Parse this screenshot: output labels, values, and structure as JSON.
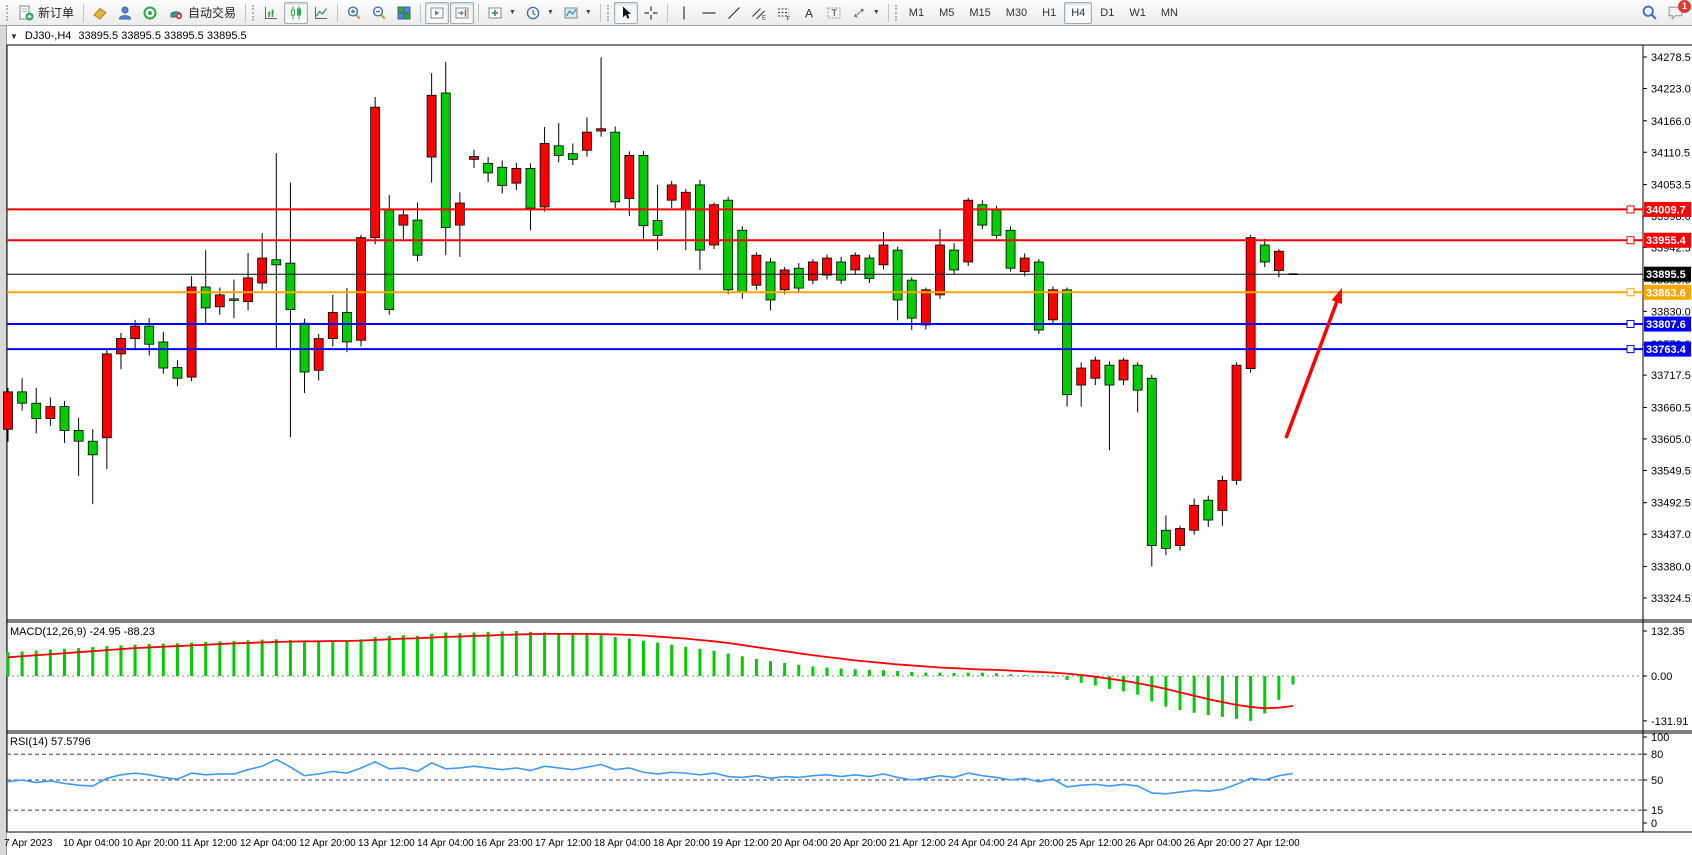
{
  "toolbar": {
    "new_order_label": "新订单",
    "auto_trading_label": "自动交易",
    "timeframes": [
      "M1",
      "M5",
      "M15",
      "M30",
      "H1",
      "H4",
      "D1",
      "W1",
      "MN"
    ],
    "active_timeframe": "H4",
    "notification_count": "1"
  },
  "chart": {
    "symbol_period": "DJ30-,H4",
    "ohlc_text": "33895.5 33895.5 33895.5 33895.5",
    "macd_label": "MACD(12,26,9)",
    "macd_values": "-24.95 -88.23",
    "rsi_label": "RSI(14)",
    "rsi_value": "57.5796"
  },
  "chart_data": {
    "type": "candlestick",
    "symbol": "DJ30-",
    "timeframe": "H4",
    "price_axis_ticks": [
      "34278.5",
      "34223.0",
      "34166.0",
      "34110.5",
      "34053.5",
      "33998.0",
      "33942.5",
      "33886.5",
      "33830.0",
      "33772.0",
      "33717.5",
      "33660.5",
      "33605.0",
      "33549.5",
      "33492.5",
      "33437.0",
      "33380.0",
      "33324.5"
    ],
    "price_axis_range": [
      33324.5,
      34278.5
    ],
    "time_labels": [
      "7 Apr 2023",
      "10 Apr 04:00",
      "10 Apr 20:00",
      "11 Apr 12:00",
      "12 Apr 04:00",
      "12 Apr 20:00",
      "13 Apr 12:00",
      "14 Apr 04:00",
      "16 Apr 23:00",
      "17 Apr 12:00",
      "18 Apr 04:00",
      "18 Apr 20:00",
      "19 Apr 12:00",
      "20 Apr 04:00",
      "20 Apr 20:00",
      "21 Apr 12:00",
      "24 Apr 04:00",
      "24 Apr 20:00",
      "25 Apr 12:00",
      "26 Apr 04:00",
      "26 Apr 20:00",
      "27 Apr 12:00"
    ],
    "candles": [
      [
        33622,
        33695,
        33600,
        33688
      ],
      [
        33688,
        33712,
        33655,
        33668
      ],
      [
        33668,
        33695,
        33615,
        33641
      ],
      [
        33641,
        33678,
        33628,
        33662
      ],
      [
        33662,
        33672,
        33598,
        33620
      ],
      [
        33620,
        33642,
        33540,
        33601
      ],
      [
        33601,
        33622,
        33490,
        33577
      ],
      [
        33607,
        33762,
        33552,
        33755
      ],
      [
        33755,
        33792,
        33728,
        33782
      ],
      [
        33782,
        33815,
        33763,
        33804
      ],
      [
        33804,
        33818,
        33752,
        33772
      ],
      [
        33776,
        33794,
        33720,
        33730
      ],
      [
        33731,
        33744,
        33698,
        33712
      ],
      [
        33714,
        33892,
        33707,
        33873
      ],
      [
        33873,
        33938,
        33809,
        33836
      ],
      [
        33838,
        33872,
        33824,
        33859
      ],
      [
        33852,
        33886,
        33818,
        33850
      ],
      [
        33847,
        33933,
        33832,
        33889
      ],
      [
        33880,
        33968,
        33868,
        33924
      ],
      [
        33921,
        34109,
        33762,
        33912
      ],
      [
        33915,
        34057,
        33608,
        33833
      ],
      [
        33809,
        33817,
        33686,
        33723
      ],
      [
        33726,
        33790,
        33708,
        33782
      ],
      [
        33782,
        33859,
        33768,
        33828
      ],
      [
        33828,
        33871,
        33758,
        33776
      ],
      [
        33779,
        33965,
        33768,
        33960
      ],
      [
        33960,
        34208,
        33948,
        34190
      ],
      [
        34009,
        34035,
        33824,
        33833
      ],
      [
        33982,
        34012,
        33956,
        34000
      ],
      [
        33991,
        34022,
        33918,
        33929
      ],
      [
        34102,
        34250,
        34057,
        34211
      ],
      [
        34215,
        34270,
        33929,
        33978
      ],
      [
        33982,
        34040,
        33926,
        34021
      ],
      [
        34098,
        34115,
        34083,
        34103
      ],
      [
        34091,
        34102,
        34058,
        34074
      ],
      [
        34084,
        34096,
        34038,
        34052
      ],
      [
        34056,
        34092,
        34044,
        34082
      ],
      [
        34082,
        34091,
        33973,
        34012
      ],
      [
        34014,
        34155,
        34006,
        34126
      ],
      [
        34122,
        34162,
        34093,
        34105
      ],
      [
        34108,
        34126,
        34088,
        34098
      ],
      [
        34114,
        34172,
        34103,
        34146
      ],
      [
        34148,
        34278,
        34138,
        34152
      ],
      [
        34146,
        34156,
        34012,
        34023
      ],
      [
        34029,
        34112,
        33998,
        34105
      ],
      [
        34105,
        34113,
        33958,
        33981
      ],
      [
        33990,
        34053,
        33938,
        33964
      ],
      [
        34026,
        34060,
        34012,
        34053
      ],
      [
        34009,
        34046,
        33938,
        34040
      ],
      [
        34053,
        34062,
        33903,
        33938
      ],
      [
        33947,
        34022,
        33940,
        34018
      ],
      [
        34026,
        34032,
        33860,
        33868
      ],
      [
        33973,
        33980,
        33852,
        33864
      ],
      [
        33876,
        33934,
        33868,
        33929
      ],
      [
        33917,
        33924,
        33832,
        33850
      ],
      [
        33868,
        33908,
        33860,
        33903
      ],
      [
        33906,
        33915,
        33862,
        33871
      ],
      [
        33885,
        33922,
        33878,
        33917
      ],
      [
        33894,
        33930,
        33886,
        33924
      ],
      [
        33917,
        33926,
        33878,
        33885
      ],
      [
        33903,
        33934,
        33895,
        33929
      ],
      [
        33924,
        33930,
        33880,
        33888
      ],
      [
        33912,
        33970,
        33904,
        33947
      ],
      [
        33938,
        33944,
        33814,
        33850
      ],
      [
        33885,
        33890,
        33797,
        33818
      ],
      [
        33806,
        33872,
        33798,
        33868
      ],
      [
        33859,
        33975,
        33852,
        33947
      ],
      [
        33938,
        33950,
        33896,
        33903
      ],
      [
        33917,
        34030,
        33910,
        34026
      ],
      [
        34018,
        34026,
        33975,
        33982
      ],
      [
        34009,
        34016,
        33958,
        33964
      ],
      [
        33973,
        33980,
        33900,
        33906
      ],
      [
        33900,
        33932,
        33892,
        33924
      ],
      [
        33917,
        33922,
        33790,
        33797
      ],
      [
        33815,
        33874,
        33808,
        33868
      ],
      [
        33868,
        33872,
        33662,
        33683
      ],
      [
        33700,
        33740,
        33662,
        33730
      ],
      [
        33712,
        33750,
        33700,
        33744
      ],
      [
        33735,
        33742,
        33585,
        33700
      ],
      [
        33709,
        33748,
        33700,
        33744
      ],
      [
        33735,
        33740,
        33652,
        33691
      ],
      [
        33712,
        33718,
        33380,
        33417
      ],
      [
        33444,
        33470,
        33400,
        33412
      ],
      [
        33417,
        33452,
        33408,
        33447
      ],
      [
        33444,
        33500,
        33436,
        33488
      ],
      [
        33497,
        33505,
        33450,
        33462
      ],
      [
        33479,
        33540,
        33452,
        33532
      ],
      [
        33532,
        33740,
        33524,
        33735
      ],
      [
        33729,
        33965,
        33722,
        33960
      ],
      [
        33947,
        33958,
        33908,
        33917
      ],
      [
        33902,
        33940,
        33890,
        33936
      ],
      [
        33895.5,
        33895.5,
        33895.5,
        33895.5
      ]
    ],
    "hlines": [
      {
        "price": 34009.7,
        "label": "34009.7",
        "color": "#ff0000"
      },
      {
        "price": 33955.4,
        "label": "33955.4",
        "color": "#ff0000"
      },
      {
        "price": 33895.5,
        "label": "33895.5",
        "color": "#000000",
        "kind": "current"
      },
      {
        "price": 33863.6,
        "label": "33863.6",
        "color": "#ffa500"
      },
      {
        "price": 33807.6,
        "label": "33807.6",
        "color": "#0000ff"
      },
      {
        "price": 33763.4,
        "label": "33763.4",
        "color": "#0000ff"
      }
    ],
    "macd": {
      "axis_ticks": [
        {
          "label": "132.35",
          "value": 132.35
        },
        {
          "label": "0.00",
          "value": 0
        },
        {
          "label": "-131.91",
          "value": -131.91
        }
      ],
      "histogram": [
        70,
        72,
        75,
        78,
        80,
        82,
        85,
        88,
        90,
        92,
        94,
        95,
        96,
        98,
        100,
        102,
        103,
        105,
        107,
        108,
        106,
        104,
        102,
        103,
        104,
        108,
        115,
        118,
        120,
        118,
        124,
        128,
        126,
        128,
        130,
        131,
        132.35,
        130,
        128,
        126,
        124,
        122,
        120,
        115,
        110,
        104,
        98,
        92,
        86,
        80,
        74,
        66,
        58,
        50,
        44,
        38,
        33,
        28,
        25,
        22,
        20,
        18,
        17,
        15,
        12,
        10,
        10,
        9,
        10,
        10,
        8,
        5,
        3,
        0,
        -3,
        -12,
        -20,
        -28,
        -38,
        -45,
        -55,
        -75,
        -90,
        -100,
        -108,
        -115,
        -120,
        -126,
        -131.91,
        -110,
        -70,
        -24.95
      ],
      "signal": [
        55,
        58,
        61,
        64,
        67,
        70,
        73,
        76,
        79,
        82,
        84,
        86,
        88,
        90,
        92,
        94,
        96,
        97,
        99,
        100,
        101,
        102,
        102,
        103,
        103,
        104,
        106,
        108,
        110,
        111,
        113,
        115,
        116,
        118,
        119,
        121,
        122,
        123,
        124,
        124,
        124,
        124,
        123,
        122,
        121,
        119,
        116,
        113,
        110,
        106,
        102,
        97,
        91,
        85,
        79,
        73,
        67,
        61,
        56,
        51,
        46,
        42,
        38,
        34,
        31,
        28,
        25,
        23,
        21,
        19,
        18,
        16,
        14,
        12,
        10,
        7,
        3,
        -2,
        -8,
        -14,
        -21,
        -29,
        -38,
        -48,
        -58,
        -68,
        -77,
        -85,
        -91,
        -95,
        -93,
        -88.23
      ]
    },
    "rsi": {
      "axis_ticks": [
        {
          "label": "100",
          "value": 100
        },
        {
          "label": "80",
          "value": 80
        },
        {
          "label": "50",
          "value": 50
        },
        {
          "label": "15",
          "value": 15
        },
        {
          "label": "0",
          "value": 0
        }
      ],
      "levels": [
        80,
        50,
        15
      ],
      "values": [
        48,
        50,
        47,
        49,
        46,
        44,
        43,
        52,
        56,
        58,
        56,
        53,
        51,
        58,
        56,
        57,
        57,
        62,
        66,
        74,
        65,
        55,
        57,
        60,
        58,
        64,
        71,
        63,
        64,
        60,
        70,
        63,
        64,
        66,
        64,
        62,
        64,
        61,
        66,
        64,
        62,
        65,
        68,
        62,
        64,
        59,
        57,
        59,
        58,
        56,
        58,
        54,
        53,
        55,
        52,
        54,
        53,
        55,
        56,
        54,
        56,
        54,
        57,
        53,
        50,
        52,
        55,
        53,
        58,
        55,
        53,
        50,
        52,
        48,
        51,
        42,
        44,
        45,
        43,
        45,
        43,
        35,
        34,
        36,
        38,
        37,
        39,
        45,
        52,
        50,
        55,
        57.58
      ]
    },
    "annotation_arrow": {
      "from": [
        1286,
        438
      ],
      "to": [
        1342,
        288
      ],
      "color": "#ff0000"
    },
    "colors": {
      "bull": "#ff0000",
      "bear": "#00cc00",
      "wick": "#000000",
      "macd_histogram": "#00cc00",
      "macd_signal": "#ff0000",
      "rsi_line": "#3d9bff"
    }
  }
}
